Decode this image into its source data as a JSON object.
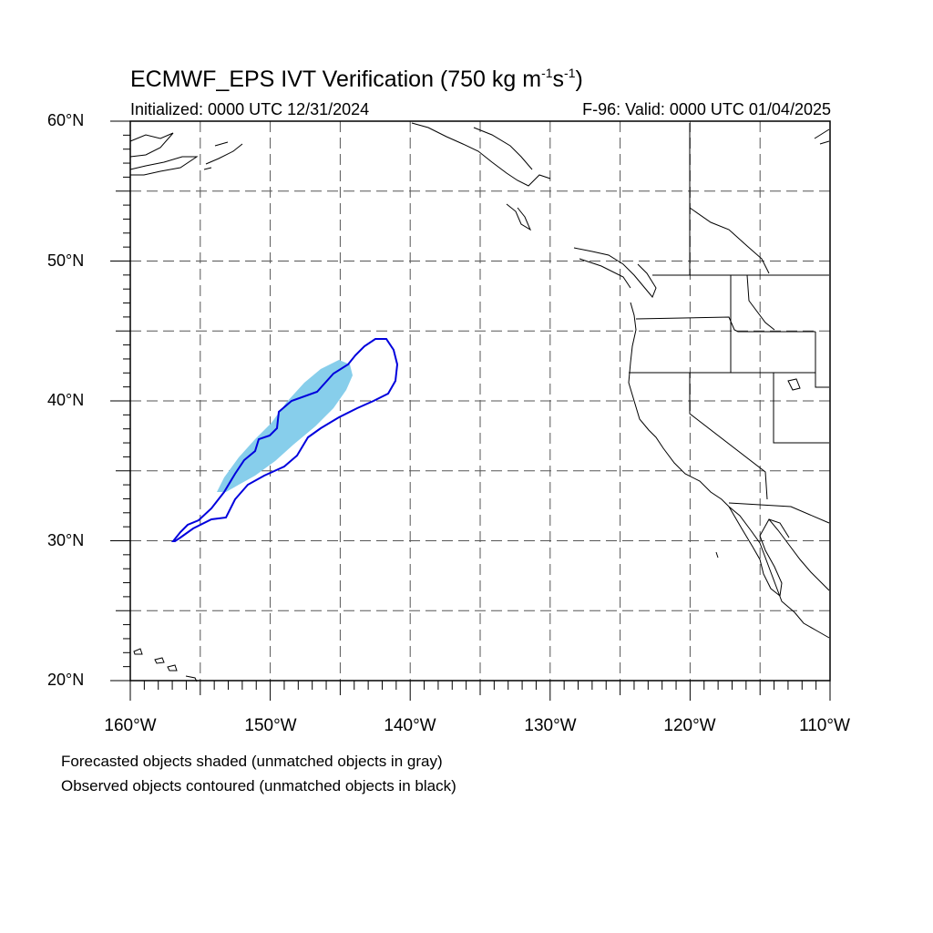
{
  "title": {
    "main_prefix": "ECMWF_EPS IVT Verification (750 kg m",
    "exp1": "-1",
    "mid": "s",
    "exp2": "-1",
    "suffix": ")"
  },
  "subtitle": {
    "initialized": "Initialized: 0000 UTC 12/31/2024",
    "valid": "F-96: Valid: 0000 UTC 01/04/2025"
  },
  "map": {
    "lon_range": [
      -160,
      -110
    ],
    "lat_range": [
      20,
      60
    ],
    "grid": "dashed every 5 degrees",
    "lat_labels": [
      "60°N",
      "50°N",
      "40°N",
      "30°N",
      "20°N"
    ],
    "lon_labels": [
      "160°W",
      "150°W",
      "140°W",
      "130°W",
      "120°W",
      "110°W"
    ],
    "colors": {
      "forecast_fill": "#87ceeb",
      "observed_contour": "#0000dd",
      "coastline": "#000000",
      "grid": "#555555"
    }
  },
  "footnotes": {
    "line1": "Forecasted objects shaded (unmatched objects in gray)",
    "line2": "Observed objects contoured (unmatched objects in black)"
  }
}
